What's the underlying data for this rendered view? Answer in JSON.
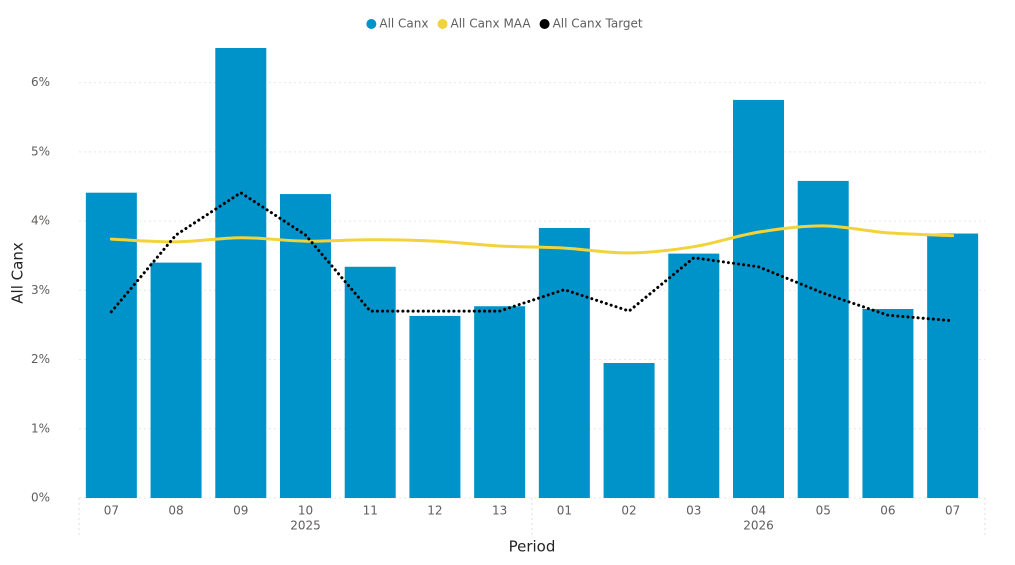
{
  "chart_data": {
    "type": "bar",
    "x_label": "Period",
    "y_label": "All Canx",
    "categories": [
      "07",
      "08",
      "09",
      "10",
      "11",
      "12",
      "13",
      "01",
      "02",
      "03",
      "04",
      "05",
      "06",
      "07"
    ],
    "years": [
      "2025",
      "2025",
      "2025",
      "2025",
      "2025",
      "2025",
      "2025",
      "2026",
      "2026",
      "2026",
      "2026",
      "2026",
      "2026",
      "2026"
    ],
    "series": [
      {
        "name": "All Canx",
        "type": "bar",
        "color": "#0093c9",
        "values": [
          4.41,
          3.4,
          6.5,
          4.39,
          3.34,
          2.63,
          2.77,
          3.9,
          1.95,
          3.53,
          5.75,
          4.58,
          2.73,
          3.82
        ]
      },
      {
        "name": "All Canx MAA",
        "type": "line",
        "style": "solid",
        "color": "#f2d33b",
        "values": [
          3.74,
          3.7,
          3.76,
          3.71,
          3.73,
          3.71,
          3.64,
          3.61,
          3.54,
          3.63,
          3.84,
          3.93,
          3.83,
          3.79
        ]
      },
      {
        "name": "All Canx Target",
        "type": "line",
        "style": "dotted",
        "color": "#000000",
        "values": [
          2.69,
          3.8,
          4.41,
          3.8,
          2.7,
          2.7,
          2.7,
          3.01,
          2.7,
          3.47,
          3.34,
          2.96,
          2.64,
          2.56
        ]
      }
    ],
    "ylim": [
      0,
      6.5
    ],
    "yticks": [
      {
        "value": 0,
        "label": "0%"
      },
      {
        "value": 1,
        "label": "1%"
      },
      {
        "value": 2,
        "label": "2%"
      },
      {
        "value": 3,
        "label": "3%"
      },
      {
        "value": 4,
        "label": "4%"
      },
      {
        "value": 5,
        "label": "5%"
      },
      {
        "value": 6,
        "label": "6%"
      }
    ],
    "grid": true,
    "legend": "top"
  }
}
